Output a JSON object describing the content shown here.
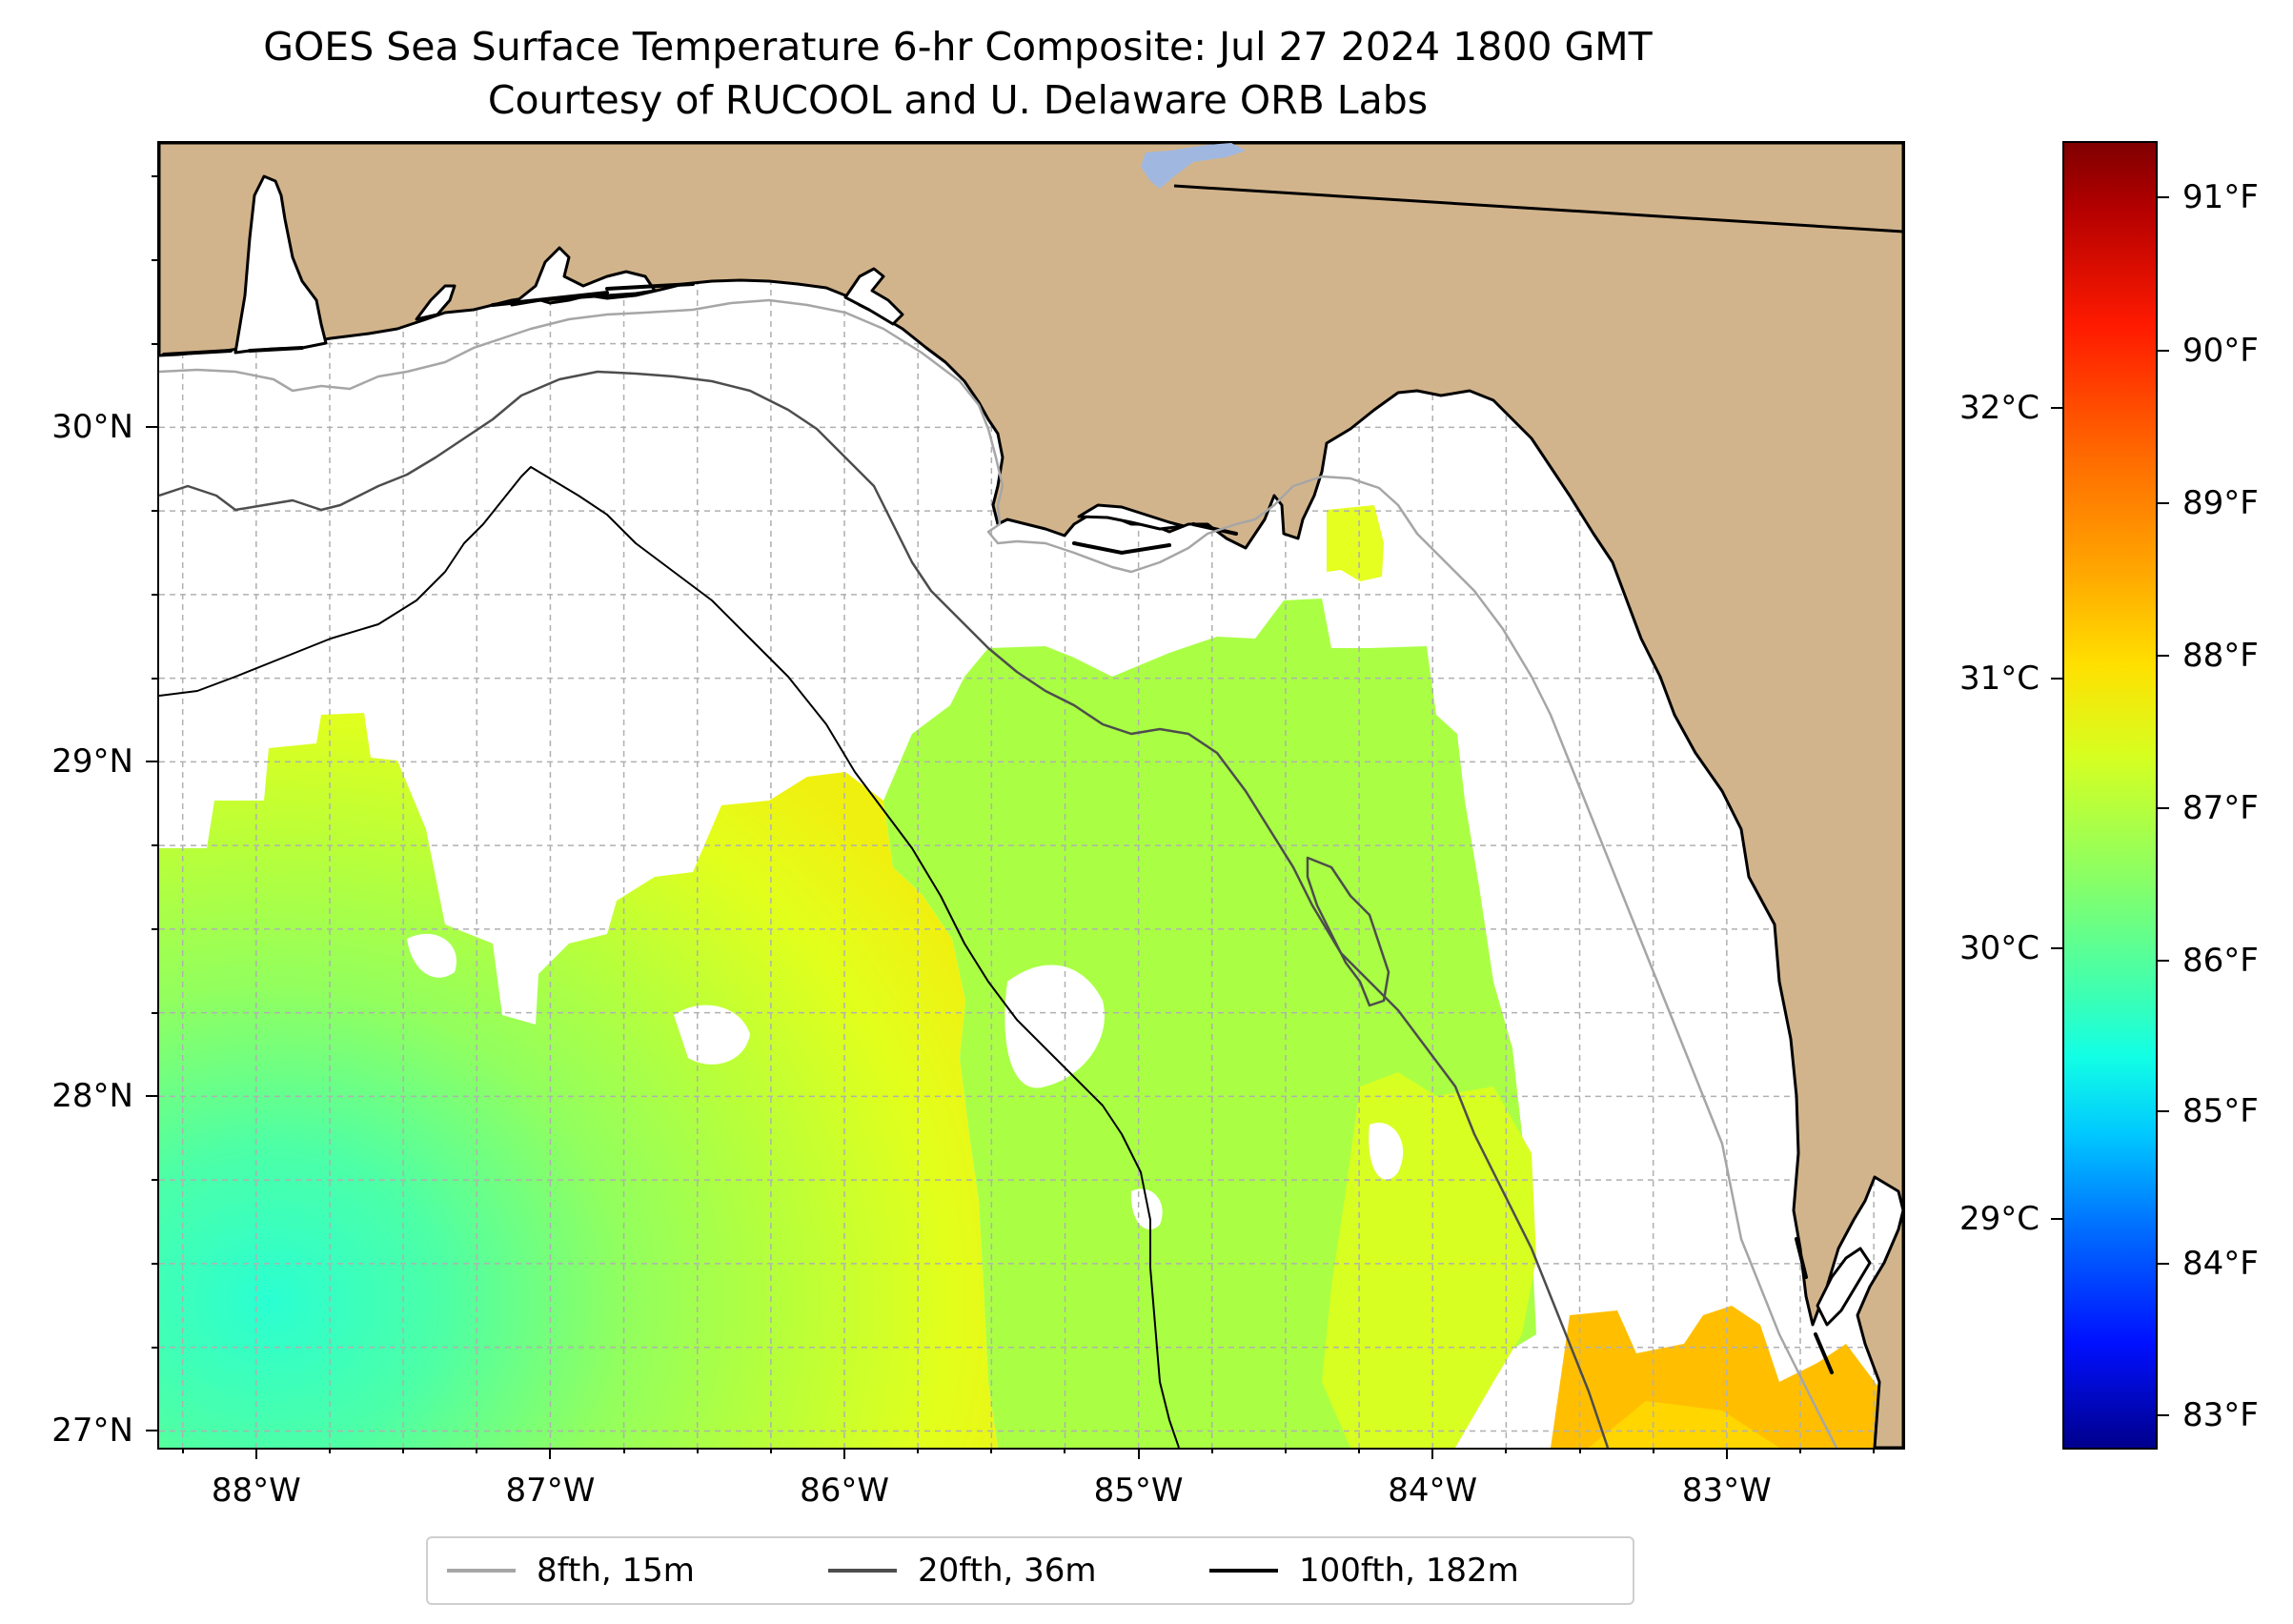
{
  "title": {
    "line1": "GOES Sea Surface Temperature 6-hr Composite: Jul 27 2024 1800 GMT",
    "line2": "Courtesy of RUCOOL and U. Delaware ORB Labs"
  },
  "map": {
    "lon_range": [
      -88.33,
      -82.4
    ],
    "lat_range": [
      26.95,
      30.85
    ],
    "land_color": "#d2b48c",
    "lake_color": "#a0b8e0",
    "lat_ticks": [
      {
        "value": 30,
        "label": "30°N"
      },
      {
        "value": 29,
        "label": "29°N"
      },
      {
        "value": 28,
        "label": "28°N"
      },
      {
        "value": 27,
        "label": "27°N"
      }
    ],
    "lon_ticks": [
      {
        "value": -88,
        "label": "88°W"
      },
      {
        "value": -87,
        "label": "87°W"
      },
      {
        "value": -86,
        "label": "86°W"
      },
      {
        "value": -85,
        "label": "85°W"
      },
      {
        "value": -84,
        "label": "84°W"
      },
      {
        "value": -83,
        "label": "83°W"
      }
    ],
    "gridlines": true
  },
  "colorbar": {
    "fahrenheit_labels": [
      "91°F",
      "90°F",
      "89°F",
      "88°F",
      "87°F",
      "86°F",
      "85°F",
      "84°F",
      "83°F"
    ],
    "celsius_labels": [
      "32°C",
      "31°C",
      "30°C",
      "29°C"
    ]
  },
  "legend": {
    "items": [
      {
        "label": "8fth, 15m",
        "color": "#a6a6a6"
      },
      {
        "label": "20fth, 36m",
        "color": "#4d4d4d"
      },
      {
        "label": "100fth, 182m",
        "color": "#000000"
      }
    ]
  }
}
